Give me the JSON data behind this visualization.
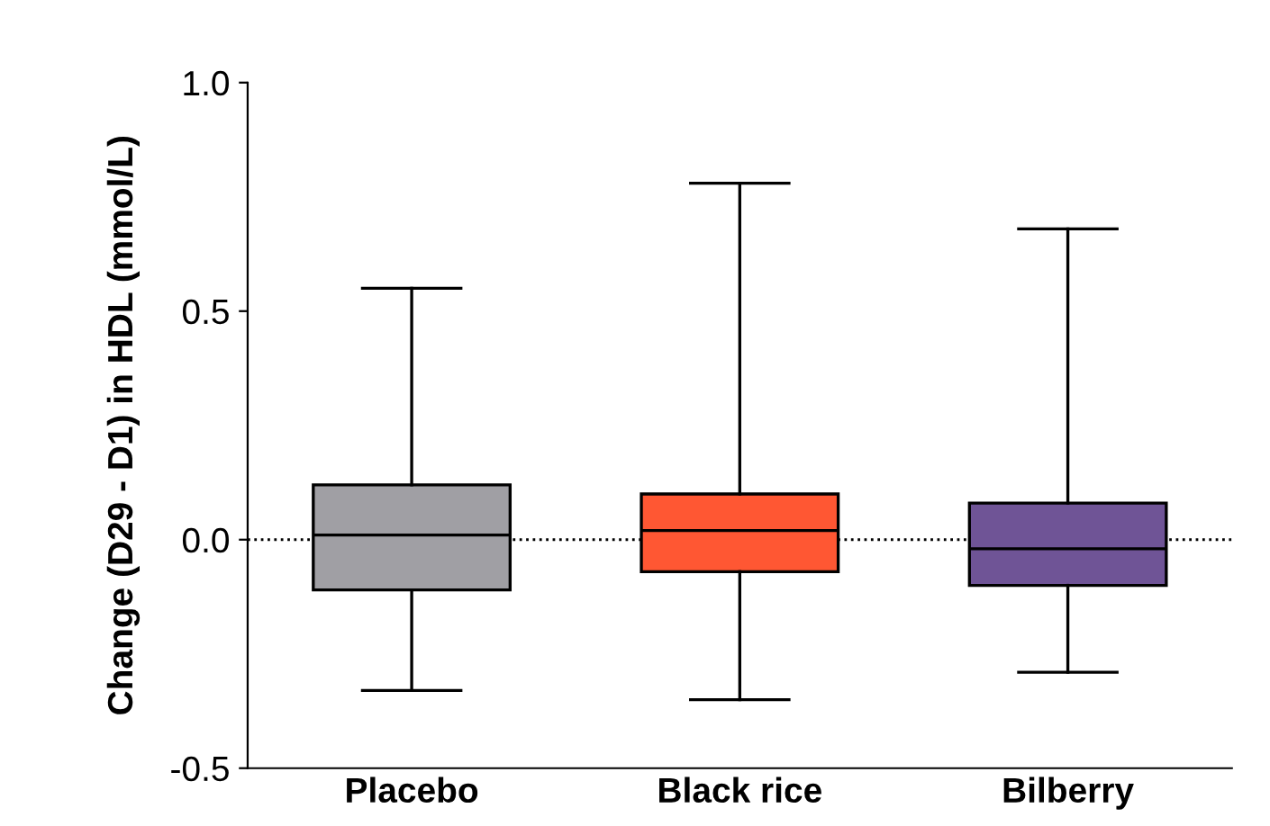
{
  "chart_data": {
    "type": "box",
    "ylabel": "Change (D29 - D1) in HDL (mmol/L)",
    "categories": [
      "Placebo",
      "Black rice",
      "Bilberry"
    ],
    "boxes": [
      {
        "low": -0.33,
        "q1": -0.11,
        "median": 0.01,
        "q3": 0.12,
        "high": 0.55
      },
      {
        "low": -0.35,
        "q1": -0.07,
        "median": 0.02,
        "q3": 0.1,
        "high": 0.78
      },
      {
        "low": -0.29,
        "q1": -0.1,
        "median": -0.02,
        "q3": 0.08,
        "high": 0.68
      }
    ],
    "colors": [
      "#a09fa4",
      "#ff5733",
      "#6f5496"
    ],
    "ylim": [
      -0.5,
      1.0
    ],
    "yticks": [
      {
        "value": -0.5,
        "label": "-0.5"
      },
      {
        "value": 0,
        "label": "0.0"
      },
      {
        "value": 0.5,
        "label": "0.5"
      },
      {
        "value": 1.0,
        "label": "1.0"
      }
    ],
    "ref_lines": [
      {
        "axis": "y",
        "value": 0,
        "line_style": "dotted",
        "color": "#000000"
      }
    ],
    "grid": false
  }
}
